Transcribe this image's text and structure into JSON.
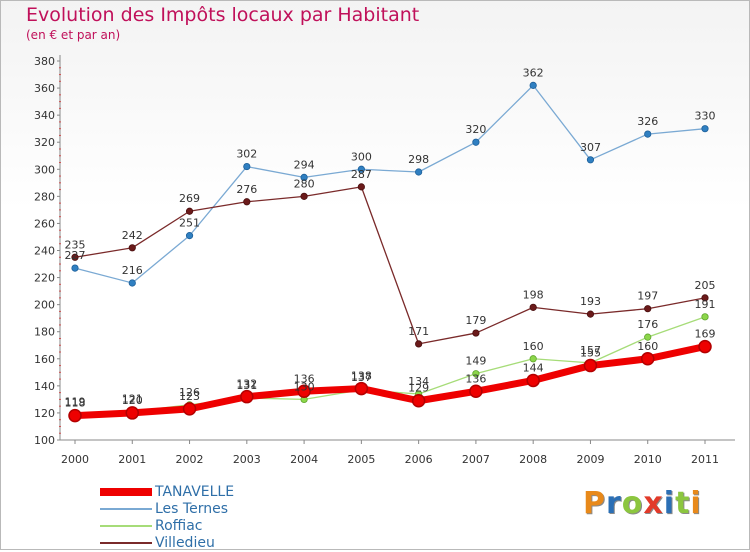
{
  "header": {
    "title": "Evolution des Impôts locaux par Habitant",
    "subtitle": "(en € et par an)"
  },
  "logo": {
    "text": "Proxiti",
    "letter_colors": [
      "#e8891a",
      "#2b6fb5",
      "#8cc63f",
      "#e23a2a",
      "#2b6fb5",
      "#8cc63f",
      "#e8891a"
    ]
  },
  "chart_data": {
    "type": "line",
    "x": [
      "2000",
      "2001",
      "2002",
      "2003",
      "2004",
      "2005",
      "2006",
      "2007",
      "2008",
      "2009",
      "2010",
      "2011"
    ],
    "ylim": [
      100,
      380
    ],
    "yticks": [
      100,
      120,
      140,
      160,
      180,
      200,
      220,
      240,
      260,
      280,
      300,
      320,
      340,
      360,
      380
    ],
    "grid": false,
    "legend_position": "bottom-left",
    "series": [
      {
        "name": "TANAVELLE",
        "color": "#ee0000",
        "values": [
          118,
          120,
          123,
          132,
          136,
          138,
          129,
          136,
          144,
          155,
          160,
          169
        ],
        "labels": [
          "118",
          "120",
          "123",
          "132",
          "136",
          "138",
          "129",
          "136",
          "144",
          "155",
          "160",
          "169"
        ]
      },
      {
        "name": "Les Ternes",
        "color": "#7aa9d3",
        "values": [
          227,
          216,
          251,
          302,
          294,
          300,
          298,
          320,
          362,
          307,
          326,
          330
        ],
        "labels": [
          "227",
          "216",
          "251",
          "302",
          "294",
          "300",
          "298",
          "320",
          "362",
          "307",
          "326",
          "330"
        ]
      },
      {
        "name": "Roffiac",
        "color": "#a6dc78",
        "values": [
          119,
          121,
          126,
          131,
          130,
          137,
          134,
          149,
          160,
          157,
          176,
          191
        ],
        "labels": [
          "119",
          "121",
          "126",
          "131",
          "130",
          "137",
          "134",
          "149",
          "160",
          "157",
          "176",
          "191"
        ]
      },
      {
        "name": "Villedieu",
        "color": "#7a2a2a",
        "values": [
          235,
          242,
          269,
          276,
          280,
          287,
          171,
          179,
          198,
          193,
          197,
          205
        ],
        "labels": [
          "235",
          "242",
          "269",
          "276",
          "280",
          "287",
          "171",
          "179",
          "198",
          "193",
          "197",
          "205"
        ]
      }
    ]
  }
}
